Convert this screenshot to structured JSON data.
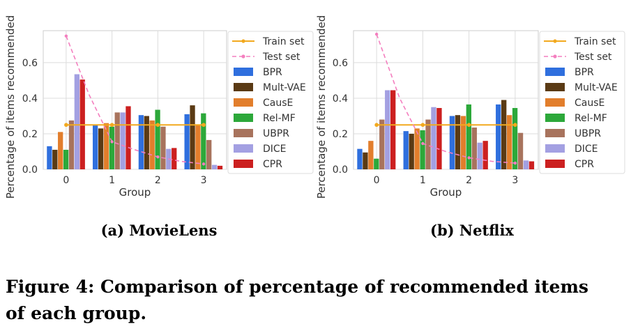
{
  "chart_data": [
    {
      "type": "bar",
      "panel_caption": "(a) MovieLens",
      "xlabel": "Group",
      "ylabel": "Percentage of items recommended",
      "categories": [
        "0",
        "1",
        "2",
        "3"
      ],
      "yticks": [
        "0.0",
        "0.2",
        "0.4",
        "0.6"
      ],
      "ylim": [
        0,
        0.78
      ],
      "grid": true,
      "legend_position": "right",
      "series": [
        {
          "name": "BPR",
          "color": "#2f6fde",
          "values": [
            0.13,
            0.25,
            0.305,
            0.31
          ]
        },
        {
          "name": "Mult-VAE",
          "color": "#5a3a14",
          "values": [
            0.11,
            0.23,
            0.3,
            0.36
          ]
        },
        {
          "name": "CausE",
          "color": "#e27e2c",
          "values": [
            0.21,
            0.26,
            0.275,
            0.25
          ]
        },
        {
          "name": "Rel-MF",
          "color": "#2ca83a",
          "values": [
            0.11,
            0.24,
            0.335,
            0.315
          ]
        },
        {
          "name": "UBPR",
          "color": "#a8735d",
          "values": [
            0.275,
            0.32,
            0.24,
            0.165
          ]
        },
        {
          "name": "DICE",
          "color": "#a3a0e2",
          "values": [
            0.535,
            0.32,
            0.115,
            0.025
          ]
        },
        {
          "name": "CPR",
          "color": "#cc2020",
          "values": [
            0.505,
            0.355,
            0.12,
            0.02
          ]
        }
      ],
      "lines": [
        {
          "name": "Train set",
          "color": "#f2a91f",
          "style": "solid",
          "values": [
            0.25,
            0.25,
            0.25,
            0.25
          ]
        },
        {
          "name": "Test set",
          "color": "#f47fbf",
          "style": "dashed",
          "x": [
            0,
            0.5,
            1,
            1.5,
            2,
            2.5,
            3
          ],
          "values": [
            0.75,
            0.42,
            0.155,
            0.11,
            0.07,
            0.045,
            0.03
          ]
        }
      ]
    },
    {
      "type": "bar",
      "panel_caption": "(b) Netflix",
      "xlabel": "Group",
      "ylabel": "Percentage of items recommended",
      "categories": [
        "0",
        "1",
        "2",
        "3"
      ],
      "yticks": [
        "0.0",
        "0.2",
        "0.4",
        "0.6"
      ],
      "ylim": [
        0,
        0.78
      ],
      "grid": true,
      "legend_position": "right",
      "series": [
        {
          "name": "BPR",
          "color": "#2f6fde",
          "values": [
            0.115,
            0.215,
            0.3,
            0.365
          ]
        },
        {
          "name": "Mult-VAE",
          "color": "#5a3a14",
          "values": [
            0.095,
            0.2,
            0.305,
            0.39
          ]
        },
        {
          "name": "CausE",
          "color": "#e27e2c",
          "values": [
            0.16,
            0.23,
            0.3,
            0.305
          ]
        },
        {
          "name": "Rel-MF",
          "color": "#2ca83a",
          "values": [
            0.06,
            0.22,
            0.365,
            0.345
          ]
        },
        {
          "name": "UBPR",
          "color": "#a8735d",
          "values": [
            0.28,
            0.28,
            0.235,
            0.205
          ]
        },
        {
          "name": "DICE",
          "color": "#a3a0e2",
          "values": [
            0.445,
            0.35,
            0.15,
            0.05
          ]
        },
        {
          "name": "CPR",
          "color": "#cc2020",
          "values": [
            0.445,
            0.345,
            0.16,
            0.045
          ]
        }
      ],
      "lines": [
        {
          "name": "Train set",
          "color": "#f2a91f",
          "style": "solid",
          "values": [
            0.25,
            0.25,
            0.25,
            0.25
          ]
        },
        {
          "name": "Test set",
          "color": "#f47fbf",
          "style": "dashed",
          "x": [
            0,
            0.5,
            1,
            1.5,
            2,
            2.5,
            3
          ],
          "values": [
            0.76,
            0.4,
            0.145,
            0.1,
            0.065,
            0.045,
            0.035
          ]
        }
      ]
    }
  ],
  "figure_caption_line1": "Figure 4: Comparison of percentage of recommended items",
  "figure_caption_line2": "of each group."
}
